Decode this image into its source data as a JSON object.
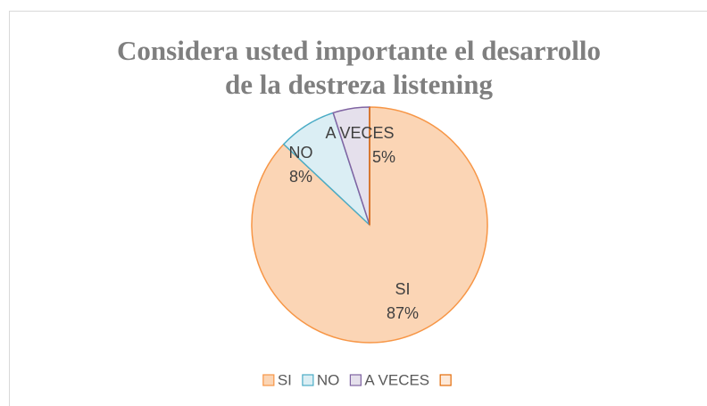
{
  "chart_data": {
    "type": "pie",
    "title": [
      "Considera usted  importante el desarrollo",
      "de la destreza  listening"
    ],
    "categories": [
      "SI",
      "NO",
      "A VECES",
      null
    ],
    "values": [
      87,
      8,
      5,
      0
    ],
    "value_labels": [
      "87%",
      "8%",
      "5%",
      null
    ],
    "colors": [
      "#fbd5b5",
      "#dbeef4",
      "#e5e0ec",
      "#fde9d9"
    ],
    "edge_colors": [
      "#f79646",
      "#4bacc6",
      "#8064a2",
      "#e36c09"
    ],
    "legend": "bottom"
  }
}
